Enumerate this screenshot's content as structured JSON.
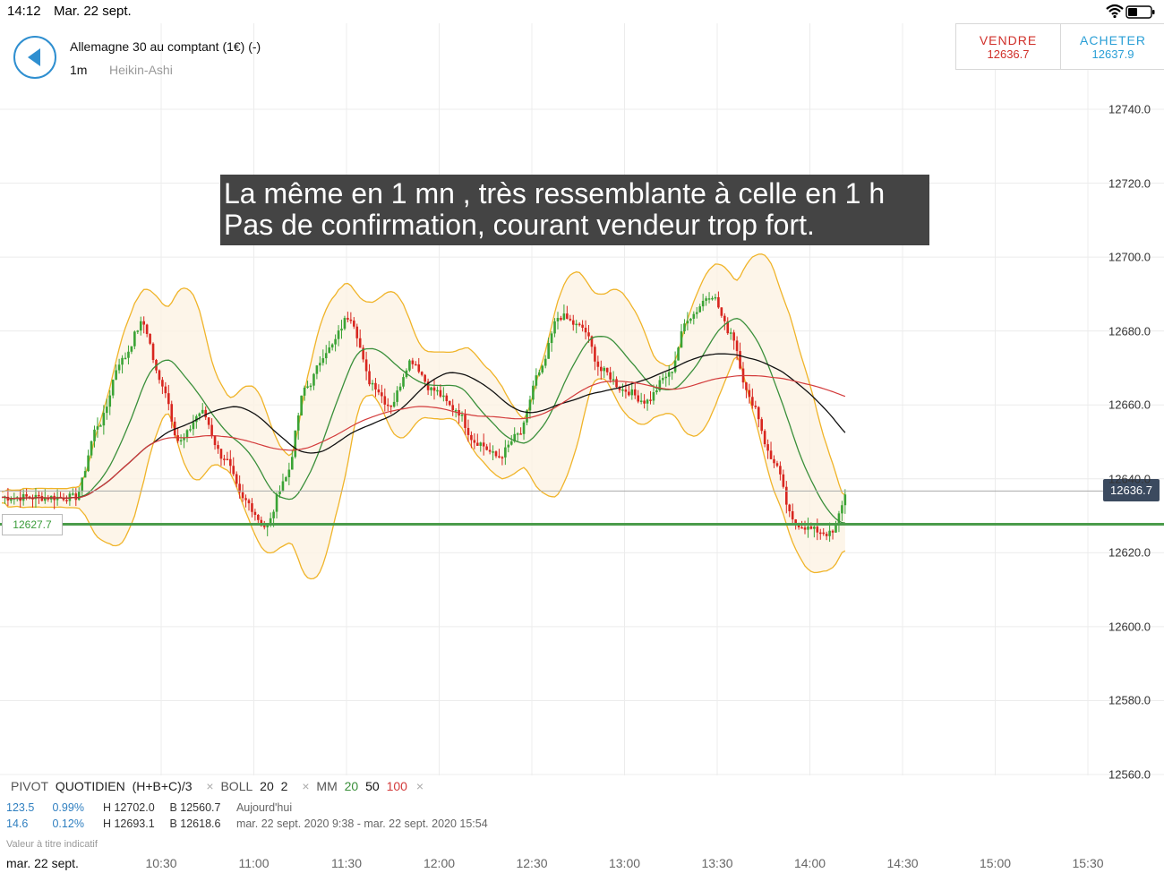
{
  "status": {
    "time": "14:12",
    "date": "Mar. 22 sept."
  },
  "header": {
    "instrument": "Allemagne 30 au comptant (1€) (-)",
    "timeframe": "1m",
    "chart_type": "Heikin-Ashi",
    "sell_label": "VENDRE",
    "sell_price": "12636.7",
    "buy_label": "ACHETER",
    "buy_price": "12637.9"
  },
  "annotation": {
    "line1": "La même en 1 mn , très ressemblante à celle en 1 h",
    "line2": "Pas de confirmation, courant vendeur trop fort."
  },
  "price_tags": {
    "current": "12636.7",
    "pivot": "12627.7"
  },
  "legend": {
    "pivot_label": "PIVOT",
    "pivot_mode": "QUOTIDIEN",
    "pivot_formula": "(H+B+C)/3",
    "boll_label": "BOLL",
    "boll_period": "20",
    "boll_dev": "2",
    "mm_label": "MM",
    "mm_1": "20",
    "mm_2": "50",
    "mm_3": "100",
    "remove_symbol": "×"
  },
  "stats": {
    "row1": {
      "change": "123.5",
      "pct": "0.99%",
      "high": "H 12702.0",
      "low": "B 12560.7",
      "period": "Aujourd'hui"
    },
    "row2": {
      "change": "14.6",
      "pct": "0.12%",
      "high": "H 12693.1",
      "low": "B 12618.6",
      "period": "mar. 22 sept. 2020 9:38 - mar. 22 sept. 2020 15:54"
    }
  },
  "disclaimer": "Valeur à titre indicatif",
  "footer_date": "mar. 22 sept.",
  "colors": {
    "up": "#3aa335",
    "down": "#d8261f",
    "boll": "#f0b429",
    "mm20": "#3a8f3a",
    "mm50": "#111111",
    "mm100": "#d33b3b",
    "pivot": "#4a9c4a",
    "accent": "#2f8fd0"
  },
  "chart_data": {
    "type": "line",
    "y_ticks": [
      "12740.0",
      "12720.0",
      "12700.0",
      "12680.0",
      "12660.0",
      "12640.0",
      "12620.0",
      "12600.0",
      "12580.0",
      "12560.0"
    ],
    "x_ticks": [
      "10:30",
      "11:00",
      "11:30",
      "12:00",
      "12:30",
      "13:00",
      "13:30",
      "14:00",
      "14:30",
      "15:00",
      "15:30"
    ],
    "ylim": [
      12552,
      12760
    ],
    "pivot_level": 12627.7,
    "current_price": 12636.7,
    "series": [
      {
        "values_time": [
          "10:02",
          "10:10",
          "10:17",
          "10:24",
          "10:30",
          "10:36",
          "10:43",
          "10:50",
          "10:57",
          "11:04",
          "11:10",
          "11:17",
          "11:24",
          "11:31",
          "11:38",
          "11:44",
          "11:51",
          "11:58",
          "12:05",
          "12:12",
          "12:19",
          "12:26",
          "12:32",
          "12:39",
          "12:46",
          "12:53",
          "13:00",
          "13:07",
          "13:14",
          "13:21",
          "13:28",
          "13:34",
          "13:41",
          "13:48",
          "13:55",
          "14:02",
          "14:07",
          "14:12"
        ],
        "values": [
          12635,
          12655,
          12672,
          12682,
          12666,
          12650,
          12658,
          12646,
          12634,
          12627,
          12640,
          12665,
          12675,
          12684,
          12666,
          12660,
          12672,
          12664,
          12659,
          12650,
          12646,
          12652,
          12668,
          12684,
          12681,
          12669,
          12664,
          12661,
          12668,
          12684,
          12690,
          12680,
          12661,
          12645,
          12628,
          12626,
          12625,
          12636
        ]
      }
    ]
  }
}
